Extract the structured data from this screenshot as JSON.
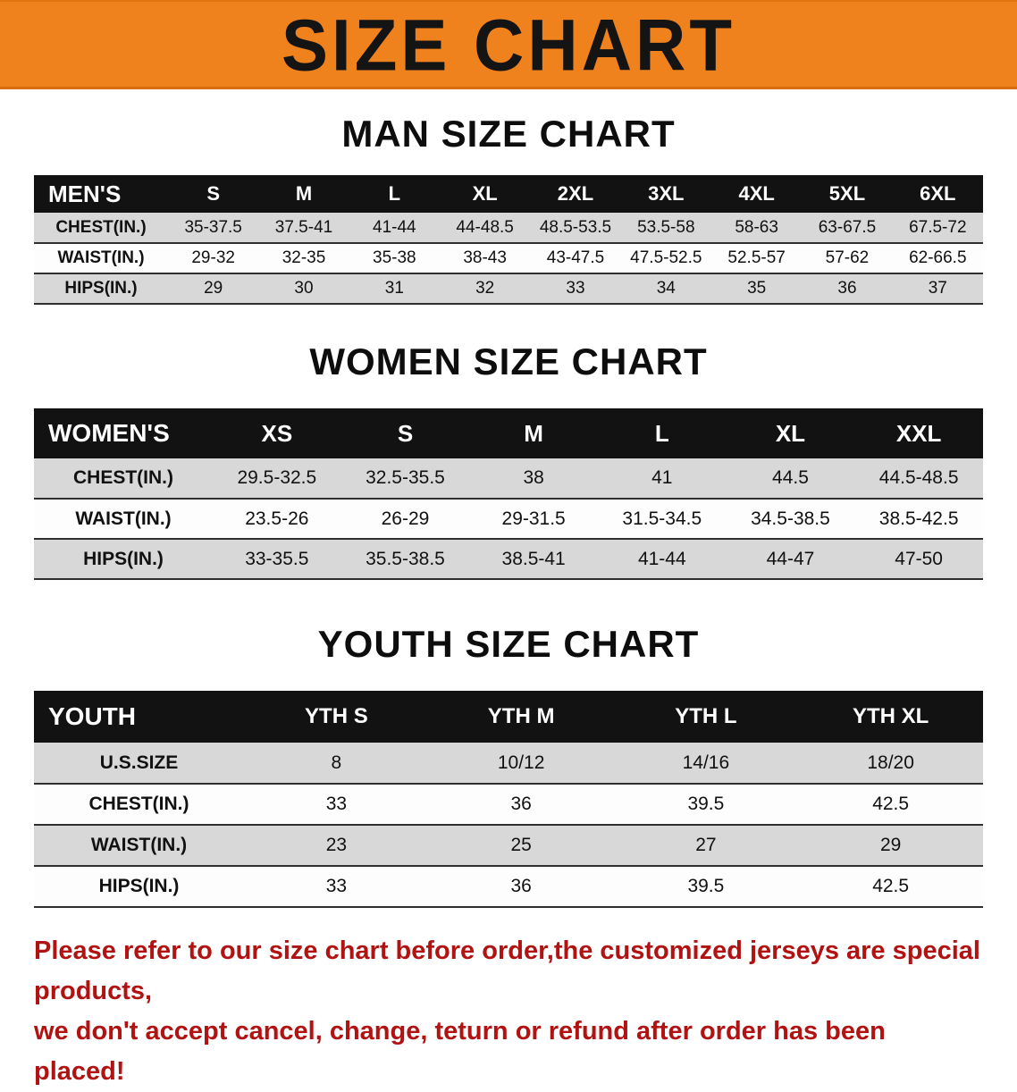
{
  "banner": {
    "title": "SIZE CHART",
    "bg_color": "#f0821e"
  },
  "colors": {
    "header_bar": "#121212",
    "row_shaded": "#d8d8d8",
    "disclaimer_red": "#b11212"
  },
  "sections": [
    {
      "heading": "MAN SIZE CHART",
      "table": {
        "header_label": "MEN'S",
        "columns": [
          "S",
          "M",
          "L",
          "XL",
          "2XL",
          "3XL",
          "4XL",
          "5XL",
          "6XL"
        ],
        "rows": [
          {
            "label": "CHEST(IN.)",
            "values": [
              "35-37.5",
              "37.5-41",
              "41-44",
              "44-48.5",
              "48.5-53.5",
              "53.5-58",
              "58-63",
              "63-67.5",
              "67.5-72"
            ]
          },
          {
            "label": "WAIST(IN.)",
            "values": [
              "29-32",
              "32-35",
              "35-38",
              "38-43",
              "43-47.5",
              "47.5-52.5",
              "52.5-57",
              "57-62",
              "62-66.5"
            ]
          },
          {
            "label": "HIPS(IN.)",
            "values": [
              "29",
              "30",
              "31",
              "32",
              "33",
              "34",
              "35",
              "36",
              "37"
            ]
          }
        ]
      }
    },
    {
      "heading": "WOMEN SIZE CHART",
      "table": {
        "header_label": "WOMEN'S",
        "columns": [
          "XS",
          "S",
          "M",
          "L",
          "XL",
          "XXL"
        ],
        "rows": [
          {
            "label": "CHEST(IN.)",
            "values": [
              "29.5-32.5",
              "32.5-35.5",
              "38",
              "41",
              "44.5",
              "44.5-48.5"
            ]
          },
          {
            "label": "WAIST(IN.)",
            "values": [
              "23.5-26",
              "26-29",
              "29-31.5",
              "31.5-34.5",
              "34.5-38.5",
              "38.5-42.5"
            ]
          },
          {
            "label": "HIPS(IN.)",
            "values": [
              "33-35.5",
              "35.5-38.5",
              "38.5-41",
              "41-44",
              "44-47",
              "47-50"
            ]
          }
        ]
      }
    },
    {
      "heading": "YOUTH SIZE CHART",
      "table": {
        "header_label": "YOUTH",
        "columns": [
          "YTH S",
          "YTH M",
          "YTH L",
          "YTH XL"
        ],
        "rows": [
          {
            "label": "U.S.SIZE",
            "values": [
              "8",
              "10/12",
              "14/16",
              "18/20"
            ]
          },
          {
            "label": "CHEST(IN.)",
            "values": [
              "33",
              "36",
              "39.5",
              "42.5"
            ]
          },
          {
            "label": "WAIST(IN.)",
            "values": [
              "23",
              "25",
              "27",
              "29"
            ]
          },
          {
            "label": "HIPS(IN.)",
            "values": [
              "33",
              "36",
              "39.5",
              "42.5"
            ]
          }
        ]
      }
    }
  ],
  "disclaimer": {
    "line1": "Please refer to our size chart before order,the customized jerseys are special products,",
    "line2": "we don't accept cancel, change, teturn or refund after order has been placed!"
  }
}
